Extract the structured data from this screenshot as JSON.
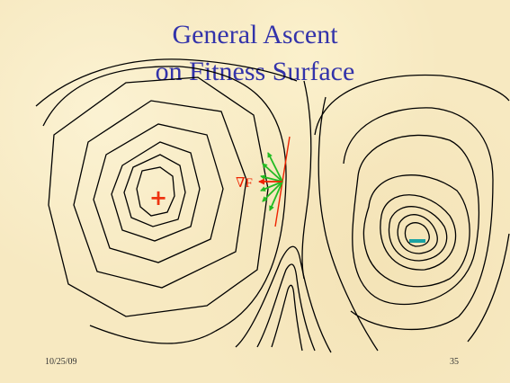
{
  "slide": {
    "title_line1": "General Ascent",
    "title_line2": "on Fitness Surface",
    "date": "10/25/09",
    "page_number": "35"
  },
  "diagram": {
    "maximum_marker": "+",
    "minimum_marker": "–",
    "gradient_label": "∇F",
    "colors": {
      "title": "#3333aa",
      "maximum": "#ee3311",
      "minimum": "#1aa3a3",
      "gradient": "#ee2200",
      "tangent": "#ee2200",
      "ascent_arrows": "#22bb22",
      "contours": "#000000",
      "background": "#f7e9c1"
    }
  }
}
